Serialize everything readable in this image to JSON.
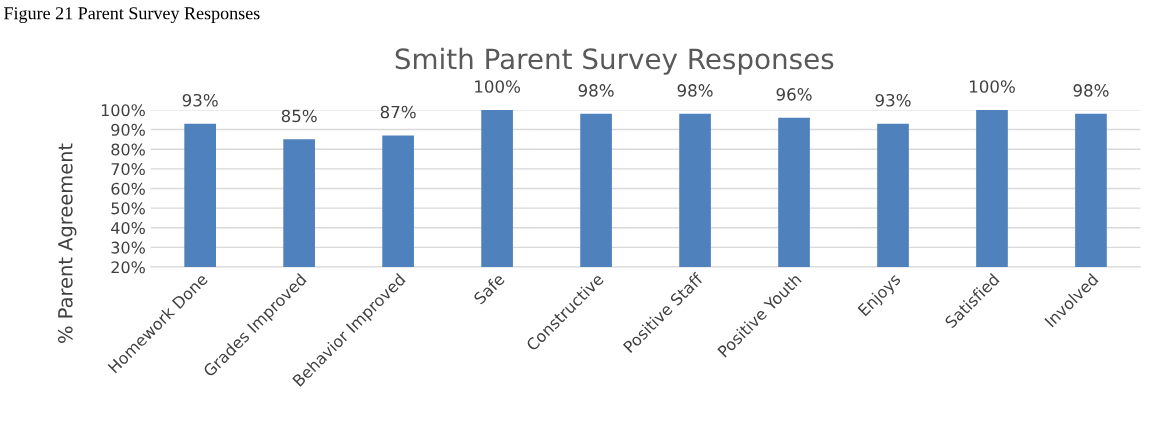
{
  "chart_data": {
    "type": "bar",
    "title": "Smith Parent Survey Responses",
    "ylabel": "% Parent Agreement",
    "annotations": [
      "Figure 21 Parent Survey Responses"
    ],
    "categories": [
      "Homework Done",
      "Grades Improved",
      "Behavior Improved",
      "Safe",
      "Constructive",
      "Positive Staff",
      "Positive Youth",
      "Enjoys",
      "Satisfied",
      "Involved"
    ],
    "values": [
      93,
      85,
      87,
      100,
      98,
      98,
      96,
      93,
      100,
      98
    ],
    "value_labels": [
      "93%",
      "85%",
      "87%",
      "100%",
      "98%",
      "98%",
      "96%",
      "93%",
      "100%",
      "98%"
    ],
    "color": "#4f81bd",
    "ylim": [
      20,
      100
    ],
    "yticks": [
      {
        "value": 20,
        "label": "20%"
      },
      {
        "value": 30,
        "label": "30%"
      },
      {
        "value": 40,
        "label": "40%"
      },
      {
        "value": 50,
        "label": "50%"
      },
      {
        "value": 60,
        "label": "60%"
      },
      {
        "value": 70,
        "label": "70%"
      },
      {
        "value": 80,
        "label": "80%"
      },
      {
        "value": 90,
        "label": "90%"
      },
      {
        "value": 100,
        "label": "100%"
      }
    ],
    "grid": "y",
    "legend": false
  }
}
